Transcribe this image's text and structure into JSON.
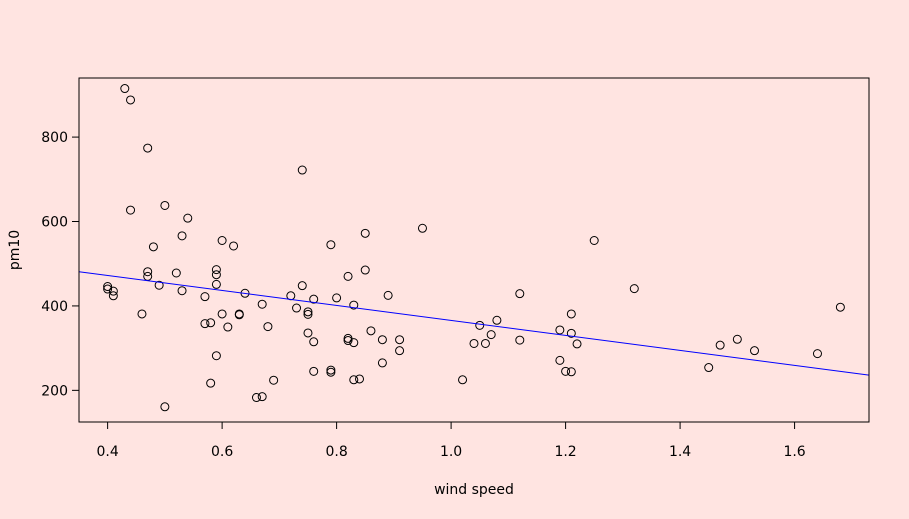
{
  "chart_data": {
    "type": "scatter",
    "title": "",
    "xlabel": "wind speed",
    "ylabel": "pm10",
    "xlim": [
      0.35,
      1.73
    ],
    "ylim": [
      125,
      940
    ],
    "x_ticks": [
      "0.4",
      "0.6",
      "0.8",
      "1.0",
      "1.2",
      "1.4",
      "1.6"
    ],
    "y_ticks": [
      "200",
      "400",
      "600",
      "800"
    ],
    "grid": false,
    "colors": {
      "background": "#ffe4e1",
      "points": "#000000",
      "fit_line": "#0000ff"
    },
    "fit_line": {
      "x": [
        0.35,
        1.73
      ],
      "y": [
        481,
        236
      ]
    },
    "points": [
      [
        0.43,
        915
      ],
      [
        0.44,
        888
      ],
      [
        0.47,
        774
      ],
      [
        0.44,
        627
      ],
      [
        0.5,
        638
      ],
      [
        0.54,
        608
      ],
      [
        0.53,
        566
      ],
      [
        0.48,
        540
      ],
      [
        0.4,
        446
      ],
      [
        0.4,
        440
      ],
      [
        0.41,
        435
      ],
      [
        0.41,
        424
      ],
      [
        0.47,
        481
      ],
      [
        0.47,
        470
      ],
      [
        0.49,
        449
      ],
      [
        0.46,
        381
      ],
      [
        0.52,
        478
      ],
      [
        0.53,
        436
      ],
      [
        0.5,
        161
      ],
      [
        0.57,
        422
      ],
      [
        0.57,
        358
      ],
      [
        0.58,
        360
      ],
      [
        0.59,
        486
      ],
      [
        0.59,
        474
      ],
      [
        0.59,
        451
      ],
      [
        0.6,
        555
      ],
      [
        0.62,
        542
      ],
      [
        0.6,
        381
      ],
      [
        0.61,
        350
      ],
      [
        0.59,
        282
      ],
      [
        0.58,
        217
      ],
      [
        0.63,
        381
      ],
      [
        0.63,
        379
      ],
      [
        0.64,
        430
      ],
      [
        0.67,
        404
      ],
      [
        0.68,
        351
      ],
      [
        0.69,
        224
      ],
      [
        0.66,
        183
      ],
      [
        0.67,
        185
      ],
      [
        0.74,
        722
      ],
      [
        0.72,
        424
      ],
      [
        0.74,
        448
      ],
      [
        0.73,
        395
      ],
      [
        0.75,
        386
      ],
      [
        0.75,
        380
      ],
      [
        0.76,
        416
      ],
      [
        0.75,
        336
      ],
      [
        0.76,
        315
      ],
      [
        0.76,
        245
      ],
      [
        0.79,
        545
      ],
      [
        0.8,
        419
      ],
      [
        0.79,
        248
      ],
      [
        0.79,
        243
      ],
      [
        0.82,
        470
      ],
      [
        0.83,
        402
      ],
      [
        0.82,
        323
      ],
      [
        0.82,
        318
      ],
      [
        0.83,
        313
      ],
      [
        0.83,
        225
      ],
      [
        0.84,
        227
      ],
      [
        0.85,
        572
      ],
      [
        0.85,
        485
      ],
      [
        0.86,
        341
      ],
      [
        0.88,
        320
      ],
      [
        0.88,
        265
      ],
      [
        0.89,
        425
      ],
      [
        0.91,
        320
      ],
      [
        0.91,
        294
      ],
      [
        0.95,
        584
      ],
      [
        1.02,
        225
      ],
      [
        1.04,
        311
      ],
      [
        1.05,
        354
      ],
      [
        1.06,
        311
      ],
      [
        1.07,
        332
      ],
      [
        1.08,
        366
      ],
      [
        1.12,
        429
      ],
      [
        1.12,
        319
      ],
      [
        1.19,
        343
      ],
      [
        1.19,
        271
      ],
      [
        1.2,
        245
      ],
      [
        1.21,
        381
      ],
      [
        1.21,
        335
      ],
      [
        1.21,
        244
      ],
      [
        1.22,
        310
      ],
      [
        1.25,
        555
      ],
      [
        1.32,
        441
      ],
      [
        1.45,
        254
      ],
      [
        1.47,
        307
      ],
      [
        1.5,
        321
      ],
      [
        1.53,
        294
      ],
      [
        1.64,
        287
      ],
      [
        1.68,
        397
      ]
    ]
  }
}
